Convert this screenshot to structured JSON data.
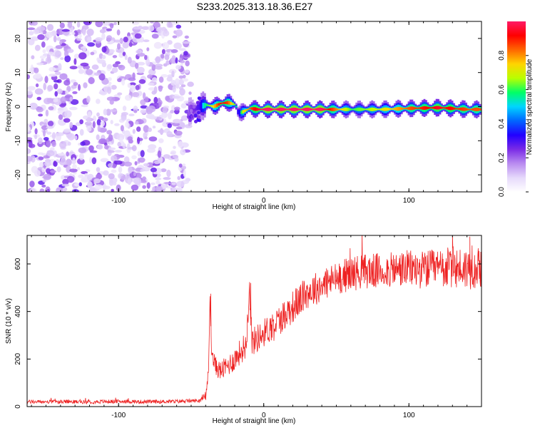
{
  "figure_title": "S233.2025.313.18.36.E27",
  "colorbar": {
    "label": "Normalized spectral amplitude",
    "ticks": [
      "0.0",
      "0.2",
      "0.4",
      "0.6",
      "0.8"
    ],
    "colors": [
      "#ffffff",
      "#e6d9fb",
      "#b98bf0",
      "#7a2be6",
      "#2200ff",
      "#0066ff",
      "#00d5ff",
      "#00ff66",
      "#b9ff00",
      "#ffd400",
      "#ff6600",
      "#ff0000",
      "#ff1a66"
    ]
  },
  "chart_data": [
    {
      "type": "heatmap",
      "title": "S233.2025.313.18.36.E27",
      "xlabel": "Height of straight line (km)",
      "ylabel": "Frequency (Hz)",
      "xlim": [
        -163,
        150
      ],
      "ylim": [
        -25,
        25
      ],
      "x_ticks": [
        -100,
        0,
        100
      ],
      "x_tick_labels": [
        "-100",
        "0",
        "100"
      ],
      "y_ticks": [
        -20,
        -10,
        0,
        10,
        20
      ],
      "y_tick_labels": [
        "-20",
        "-10",
        "0",
        "10",
        "20"
      ],
      "noise_region_x": [
        -163,
        -52
      ],
      "signal_onset_x": -52,
      "signal_band": {
        "x": [
          -52,
          -45,
          -40,
          -35,
          -30,
          -25,
          -20,
          -18,
          -15,
          -10,
          -5,
          0,
          20,
          40,
          60,
          80,
          100,
          120,
          140,
          150
        ],
        "center_freq": [
          -1.5,
          0,
          0.5,
          0,
          1,
          1.2,
          0.5,
          -2,
          -1.5,
          -0.5,
          -0.8,
          -0.8,
          -0.8,
          -0.8,
          -0.8,
          -0.8,
          -0.5,
          -0.3,
          -0.8,
          -0.8
        ],
        "amplitude": [
          0.25,
          0.4,
          0.6,
          0.75,
          0.95,
          0.85,
          0.6,
          0.4,
          0.7,
          0.85,
          0.95,
          1.0,
          1.0,
          1.0,
          0.6,
          0.7,
          0.85,
          0.95,
          0.85,
          0.85
        ]
      }
    },
    {
      "type": "line",
      "xlabel": "Height of straight line (km)",
      "ylabel": "SNR (10 * v/v)",
      "xlim": [
        -163,
        150
      ],
      "ylim": [
        0,
        720
      ],
      "x_ticks": [
        -100,
        0,
        100
      ],
      "x_tick_labels": [
        "-100",
        "0",
        "100"
      ],
      "y_ticks": [
        0,
        200,
        400,
        600
      ],
      "y_tick_labels": [
        "0",
        "200",
        "400",
        "600"
      ],
      "series": [
        {
          "name": "SNR",
          "color": "#ee2222",
          "x": [
            -163,
            -140,
            -120,
            -100,
            -80,
            -60,
            -45,
            -40,
            -38,
            -37,
            -36,
            -35,
            -33,
            -30,
            -25,
            -20,
            -15,
            -12,
            -10,
            -8,
            0,
            10,
            20,
            30,
            40,
            50,
            60,
            70,
            80,
            90,
            100,
            110,
            120,
            130,
            140,
            150
          ],
          "values": [
            20,
            20,
            20,
            22,
            20,
            22,
            25,
            40,
            150,
            470,
            260,
            200,
            170,
            150,
            170,
            200,
            240,
            260,
            520,
            270,
            310,
            360,
            420,
            480,
            510,
            540,
            560,
            570,
            570,
            575,
            580,
            575,
            580,
            585,
            580,
            590
          ],
          "noise_amplitude": [
            8,
            8,
            8,
            8,
            8,
            8,
            8,
            15,
            30,
            40,
            40,
            40,
            40,
            40,
            45,
            50,
            55,
            60,
            60,
            60,
            60,
            65,
            70,
            70,
            70,
            70,
            75,
            75,
            75,
            75,
            80,
            80,
            85,
            90,
            90,
            90
          ],
          "spikes": [
            {
              "x": 130,
              "y": 730
            },
            {
              "x": 142,
              "y": 715
            },
            {
              "x": -36.5,
              "y": 475
            },
            {
              "x": -9,
              "y": 520
            }
          ]
        }
      ]
    }
  ]
}
